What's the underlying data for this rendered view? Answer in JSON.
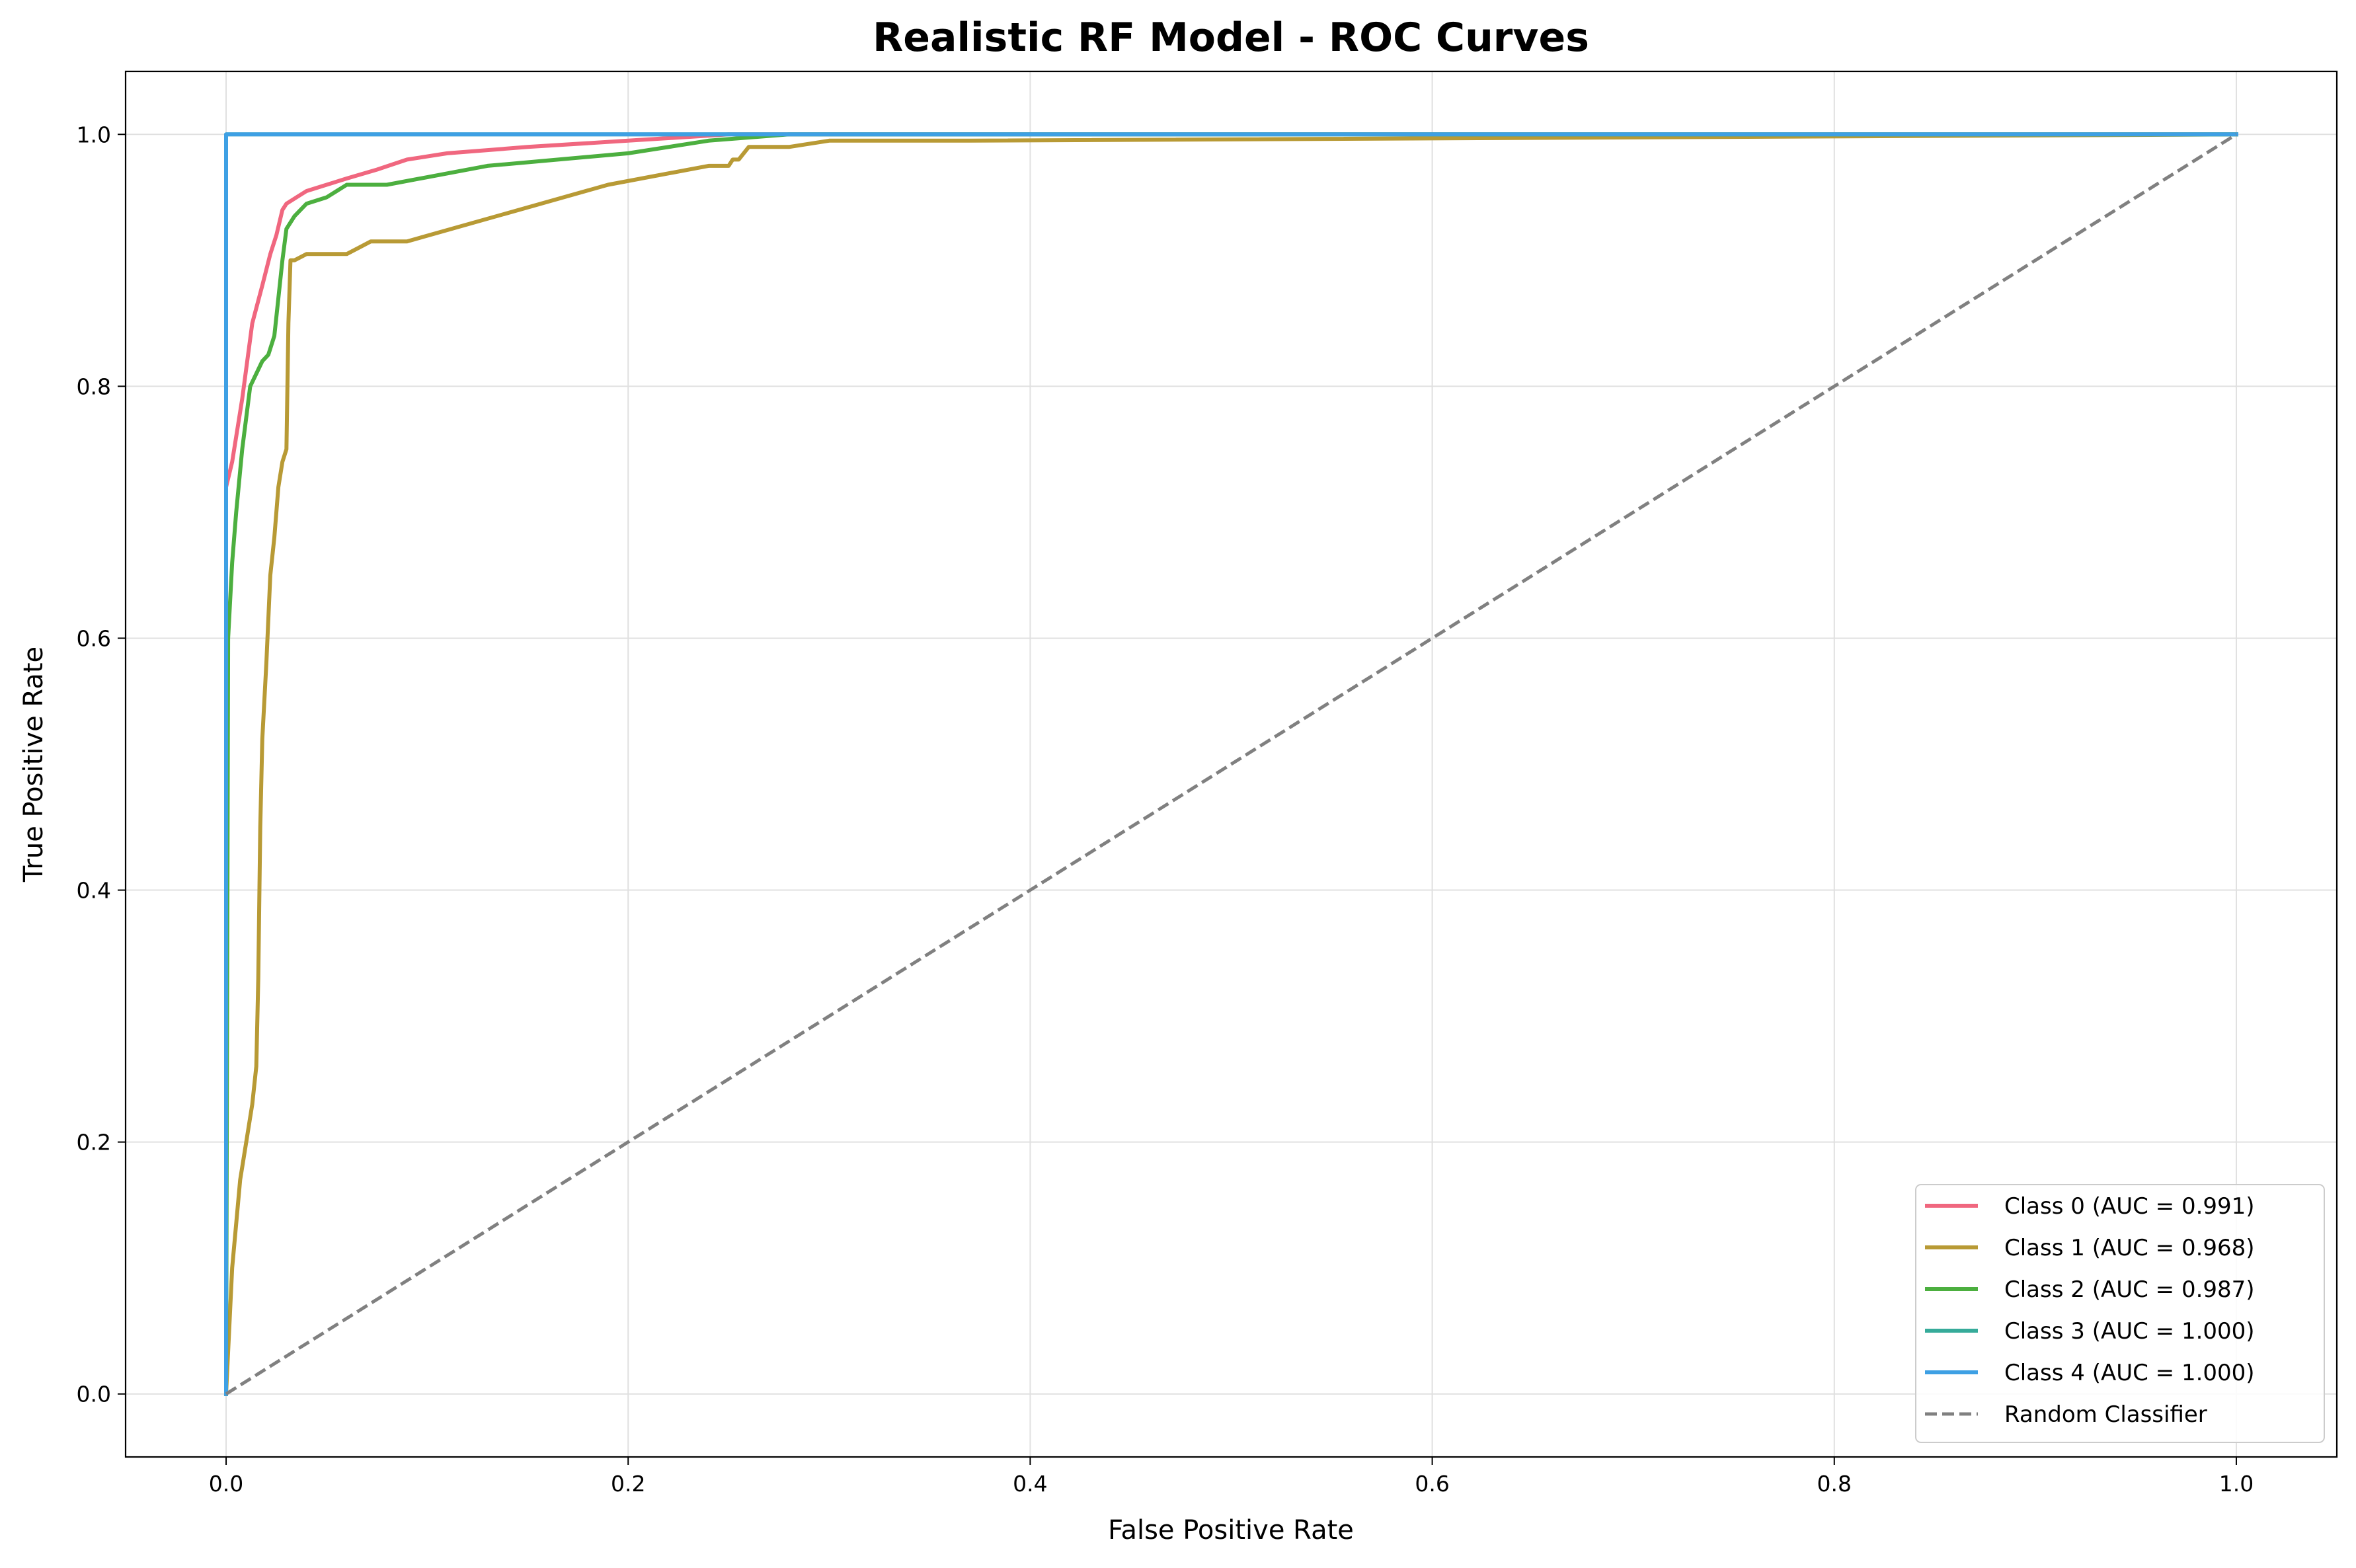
{
  "chart_data": {
    "type": "line",
    "title": "Realistic RF Model - ROC Curves",
    "xlabel": "False Positive Rate",
    "ylabel": "True Positive Rate",
    "xlim": [
      -0.05,
      1.05
    ],
    "ylim": [
      -0.05,
      1.05
    ],
    "xticks": [
      0.0,
      0.2,
      0.4,
      0.6,
      0.8,
      1.0
    ],
    "yticks": [
      0.0,
      0.2,
      0.4,
      0.6,
      0.8,
      1.0
    ],
    "xtick_labels": [
      "0.0",
      "0.2",
      "0.4",
      "0.6",
      "0.8",
      "1.0"
    ],
    "ytick_labels": [
      "0.0",
      "0.2",
      "0.4",
      "0.6",
      "0.8",
      "1.0"
    ],
    "grid": true,
    "legend_position": "lower right",
    "series": [
      {
        "name": "Class 0 (AUC = 0.991)",
        "color": "#f0677f",
        "x": [
          0.0,
          0.0,
          0.003,
          0.008,
          0.013,
          0.018,
          0.022,
          0.025,
          0.028,
          0.03,
          0.035,
          0.04,
          0.05,
          0.06,
          0.075,
          0.09,
          0.11,
          0.15,
          0.2,
          0.25,
          1.0
        ],
        "y": [
          0.0,
          0.72,
          0.74,
          0.79,
          0.85,
          0.88,
          0.905,
          0.92,
          0.94,
          0.945,
          0.95,
          0.955,
          0.96,
          0.965,
          0.972,
          0.98,
          0.985,
          0.99,
          0.995,
          1.0,
          1.0
        ]
      },
      {
        "name": "Class 1 (AUC = 0.968)",
        "color": "#b89a35",
        "x": [
          0.0,
          0.003,
          0.007,
          0.01,
          0.013,
          0.015,
          0.016,
          0.017,
          0.018,
          0.02,
          0.022,
          0.024,
          0.026,
          0.028,
          0.03,
          0.031,
          0.032,
          0.034,
          0.04,
          0.06,
          0.066,
          0.072,
          0.09,
          0.19,
          0.24,
          0.25,
          0.252,
          0.255,
          0.26,
          0.28,
          0.3,
          0.37,
          1.0
        ],
        "y": [
          0.0,
          0.1,
          0.17,
          0.2,
          0.23,
          0.26,
          0.33,
          0.45,
          0.52,
          0.58,
          0.65,
          0.68,
          0.72,
          0.74,
          0.75,
          0.85,
          0.9,
          0.9,
          0.905,
          0.905,
          0.91,
          0.915,
          0.915,
          0.96,
          0.975,
          0.975,
          0.98,
          0.98,
          0.99,
          0.99,
          0.995,
          0.995,
          1.0
        ]
      },
      {
        "name": "Class 2 (AUC = 0.987)",
        "color": "#4caf3f",
        "x": [
          0.0,
          0.001,
          0.003,
          0.005,
          0.008,
          0.012,
          0.015,
          0.018,
          0.021,
          0.024,
          0.026,
          0.028,
          0.03,
          0.034,
          0.04,
          0.05,
          0.06,
          0.07,
          0.08,
          0.13,
          0.2,
          0.24,
          0.28,
          1.0
        ],
        "y": [
          0.0,
          0.6,
          0.66,
          0.7,
          0.75,
          0.8,
          0.81,
          0.82,
          0.825,
          0.84,
          0.87,
          0.9,
          0.925,
          0.935,
          0.945,
          0.95,
          0.96,
          0.96,
          0.96,
          0.975,
          0.985,
          0.995,
          1.0,
          1.0
        ]
      },
      {
        "name": "Class 3 (AUC = 1.000)",
        "color": "#36ab9a",
        "x": [
          0.0,
          0.0,
          1.0
        ],
        "y": [
          0.0,
          1.0,
          1.0
        ]
      },
      {
        "name": "Class 4 (AUC = 1.000)",
        "color": "#3ea0e4",
        "x": [
          0.0,
          0.0,
          1.0
        ],
        "y": [
          0.0,
          1.0,
          1.0
        ]
      },
      {
        "name": "Random Classifier",
        "color": "#808080",
        "dashed": true,
        "x": [
          0.0,
          1.0
        ],
        "y": [
          0.0,
          1.0
        ]
      }
    ]
  }
}
